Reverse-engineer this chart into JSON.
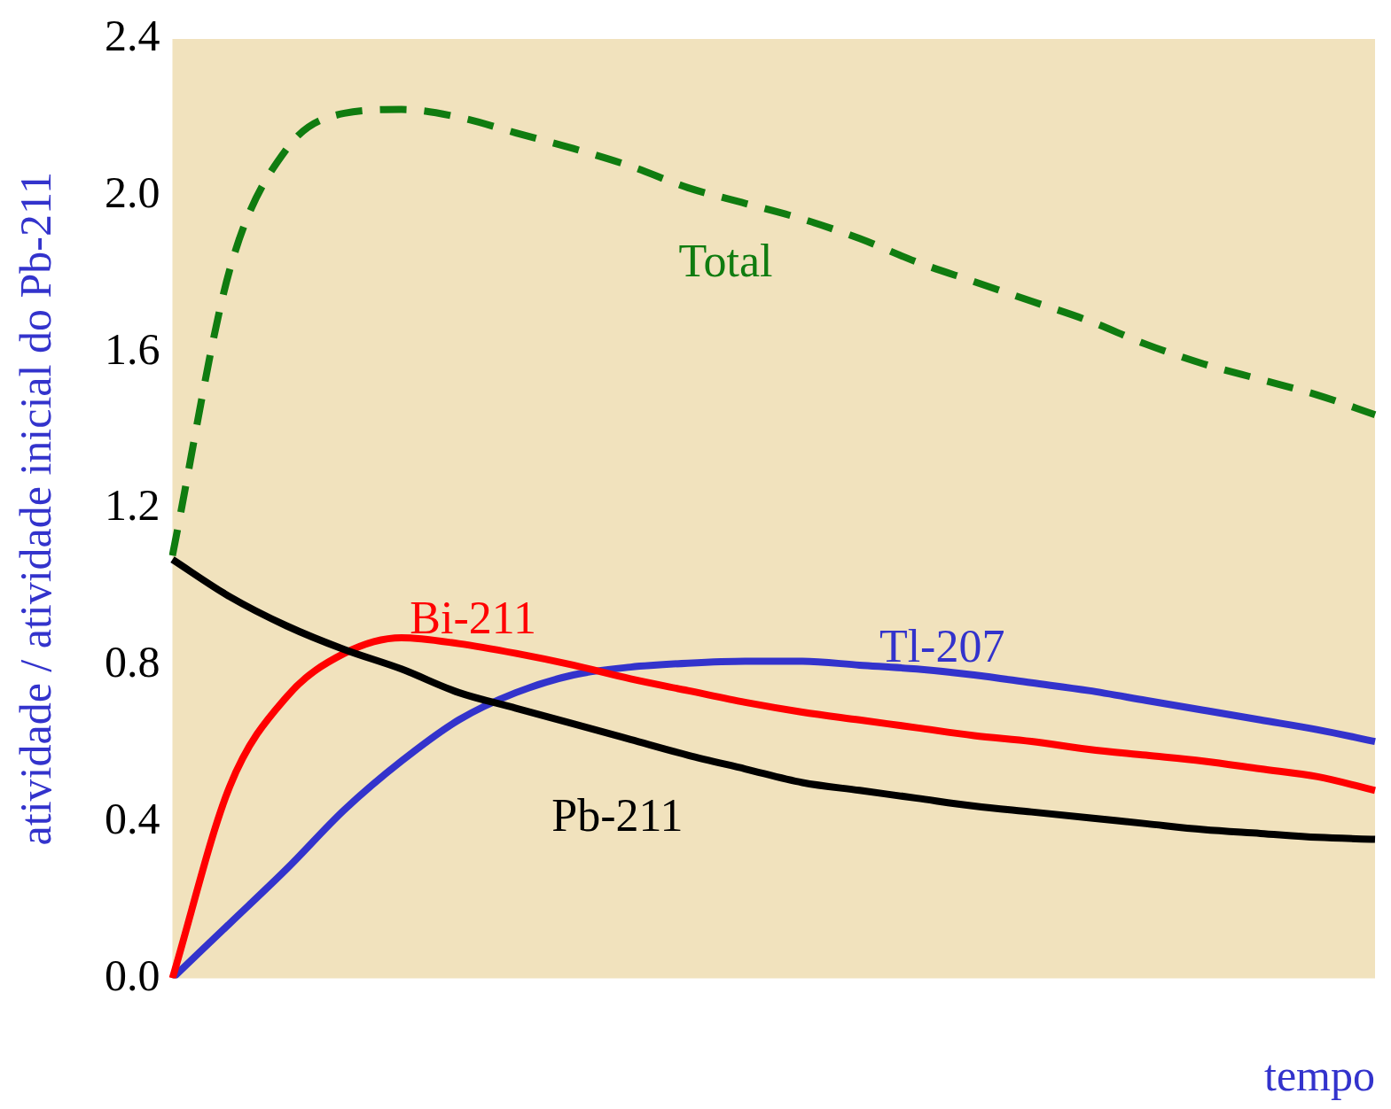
{
  "chart_data": {
    "type": "line",
    "xlabel": "tempo",
    "ylabel": "atividade / atividade inicial do Pb-211",
    "categories": [
      null,
      null,
      null,
      null,
      null,
      null,
      null,
      null,
      null,
      null,
      null,
      null,
      null,
      null,
      null,
      null,
      null,
      null,
      null,
      null,
      null,
      null
    ],
    "ylim": [
      0,
      2.4
    ],
    "yticks": [
      {
        "value": 0,
        "label": "0.0"
      },
      {
        "value": 0.4,
        "label": "0.4"
      },
      {
        "value": 0.8,
        "label": "0.8"
      },
      {
        "value": 1.2,
        "label": "1.2"
      },
      {
        "value": 1.6,
        "label": "1.6"
      },
      {
        "value": 2.0,
        "label": "2.0"
      },
      {
        "value": 2.4,
        "label": "2.4"
      }
    ],
    "grid": false,
    "legend": false,
    "marker": "none",
    "series": [
      {
        "name": "Total",
        "color": "#107c10",
        "line_style": "dashed",
        "values": [
          1.08,
          1.81,
          2.12,
          2.21,
          2.22,
          2.2,
          2.16,
          2.12,
          2.075,
          2.02,
          1.98,
          1.94,
          1.89,
          1.83,
          1.78,
          1.73,
          1.68,
          1.62,
          1.57,
          1.53,
          1.49,
          1.44
        ]
      },
      {
        "name": "Pb-211",
        "color": "#000000",
        "line_style": "solid",
        "values": [
          1.07,
          0.975,
          0.9,
          0.84,
          0.79,
          0.73,
          0.69,
          0.65,
          0.61,
          0.57,
          0.535,
          0.5,
          0.48,
          0.46,
          0.44,
          0.425,
          0.41,
          0.395,
          0.38,
          0.37,
          0.36,
          0.355
        ]
      },
      {
        "name": "Bi-211",
        "color": "#ff0000",
        "line_style": "solid",
        "values": [
          0,
          0.49,
          0.72,
          0.83,
          0.87,
          0.855,
          0.83,
          0.8,
          0.765,
          0.735,
          0.705,
          0.68,
          0.66,
          0.64,
          0.62,
          0.605,
          0.585,
          0.57,
          0.555,
          0.535,
          0.515,
          0.48
        ]
      },
      {
        "name": "Tl-207",
        "color": "#3333cc",
        "line_style": "solid",
        "values": [
          0,
          0.14,
          0.28,
          0.43,
          0.555,
          0.66,
          0.73,
          0.775,
          0.795,
          0.805,
          0.81,
          0.81,
          0.8,
          0.79,
          0.775,
          0.755,
          0.735,
          0.71,
          0.685,
          0.66,
          0.635,
          0.605
        ]
      }
    ]
  }
}
